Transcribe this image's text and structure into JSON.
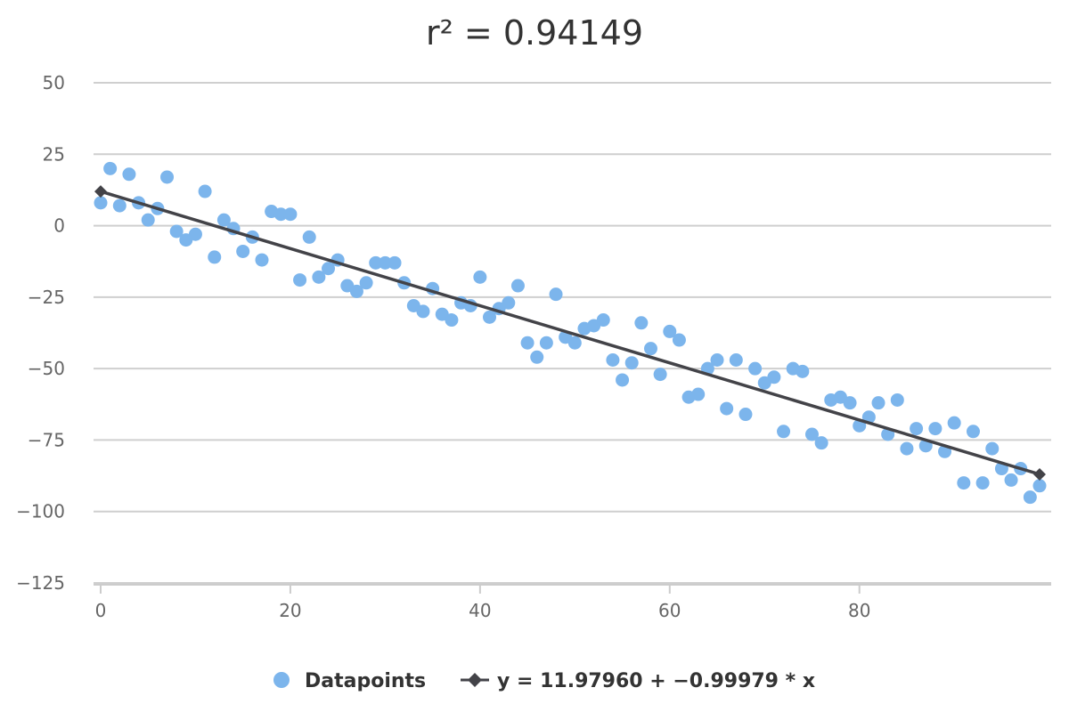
{
  "chart_data": {
    "type": "scatter",
    "title": "r² = 0.94149",
    "xlim": [
      0,
      99
    ],
    "ylim": [
      -125,
      50
    ],
    "x_ticks": [
      0,
      20,
      40,
      60,
      80
    ],
    "y_ticks": [
      50,
      25,
      0,
      -25,
      -50,
      -75,
      -100,
      -125
    ],
    "x_tick_labels": [
      "0",
      "20",
      "40",
      "60",
      "80"
    ],
    "y_tick_labels": [
      "50",
      "25",
      "0",
      "−25",
      "−50",
      "−75",
      "−100",
      "−125"
    ],
    "grid": "horizontal",
    "legend_position": "bottom-center",
    "series": [
      {
        "name": "Datapoints",
        "type": "scatter",
        "color": "#7cb5ec",
        "x": [
          0,
          1,
          2,
          3,
          4,
          5,
          6,
          7,
          8,
          9,
          10,
          11,
          12,
          13,
          14,
          15,
          16,
          17,
          18,
          19,
          20,
          21,
          22,
          23,
          24,
          25,
          26,
          27,
          28,
          29,
          30,
          31,
          32,
          33,
          34,
          35,
          36,
          37,
          38,
          39,
          40,
          41,
          42,
          43,
          44,
          45,
          46,
          47,
          48,
          49,
          50,
          51,
          52,
          53,
          54,
          55,
          56,
          57,
          58,
          59,
          60,
          61,
          62,
          63,
          64,
          65,
          66,
          67,
          68,
          69,
          70,
          71,
          72,
          73,
          74,
          75,
          76,
          77,
          78,
          79,
          80,
          81,
          82,
          83,
          84,
          85,
          86,
          87,
          88,
          89,
          90,
          91,
          92,
          93,
          94,
          95,
          96,
          97,
          98,
          99
        ],
        "y": [
          8,
          20,
          7,
          18,
          8,
          2,
          6,
          17,
          -2,
          -5,
          -3,
          12,
          -11,
          2,
          -1,
          -9,
          -4,
          -12,
          5,
          4,
          4,
          -19,
          -4,
          -18,
          -15,
          -12,
          -21,
          -23,
          -20,
          -13,
          -13,
          -13,
          -20,
          -28,
          -30,
          -22,
          -31,
          -33,
          -27,
          -28,
          -18,
          -32,
          -29,
          -27,
          -21,
          -41,
          -46,
          -41,
          -24,
          -39,
          -41,
          -36,
          -35,
          -33,
          -47,
          -54,
          -48,
          -34,
          -43,
          -52,
          -37,
          -40,
          -60,
          -59,
          -50,
          -47,
          -64,
          -47,
          -66,
          -50,
          -55,
          -53,
          -72,
          -50,
          -51,
          -73,
          -76,
          -61,
          -60,
          -62,
          -70,
          -67,
          -62,
          -73,
          -61,
          -78,
          -71,
          -77,
          -71,
          -79,
          -69,
          -90,
          -72,
          -90,
          -78,
          -85,
          -89,
          -85,
          -95,
          -91
        ]
      },
      {
        "name": "y = 11.97960 + −0.99979 * x",
        "type": "line",
        "color": "#434348",
        "x": [
          0,
          99
        ],
        "y": [
          11.9796,
          -87.0
        ]
      }
    ]
  }
}
